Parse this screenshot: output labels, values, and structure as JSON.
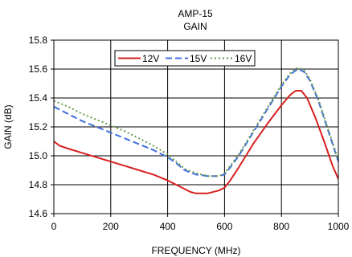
{
  "chart_data": {
    "type": "line",
    "title": "AMP-15",
    "subtitle": "GAIN",
    "xlabel": "FREQUENCY (MHz)",
    "ylabel": "GAIN (dB)",
    "xlim": [
      0,
      1000
    ],
    "ylim": [
      14.6,
      15.8
    ],
    "xticks": [
      0,
      200,
      400,
      600,
      800,
      1000
    ],
    "yticks": [
      14.6,
      14.8,
      15.0,
      15.2,
      15.4,
      15.6,
      15.8
    ],
    "xtick_labels": [
      "0",
      "200",
      "400",
      "600",
      "800",
      "1000"
    ],
    "ytick_labels": [
      "14.6",
      "14.8",
      "15.0",
      "15.2",
      "15.4",
      "15.6",
      "15.8"
    ],
    "grid": true,
    "legend_position": "top-center",
    "series": [
      {
        "name": "12V",
        "color": "#d62020",
        "style": "solid",
        "x": [
          0,
          20,
          50,
          100,
          150,
          200,
          250,
          300,
          350,
          400,
          430,
          460,
          480,
          500,
          540,
          580,
          600,
          620,
          650,
          700,
          750,
          800,
          830,
          850,
          870,
          890,
          920,
          950,
          980,
          1000
        ],
        "y": [
          15.1,
          15.07,
          15.05,
          15.02,
          14.99,
          14.96,
          14.93,
          14.9,
          14.87,
          14.83,
          14.8,
          14.77,
          14.75,
          14.74,
          14.74,
          14.76,
          14.78,
          14.83,
          14.92,
          15.08,
          15.22,
          15.35,
          15.42,
          15.45,
          15.45,
          15.4,
          15.26,
          15.1,
          14.93,
          14.84
        ]
      },
      {
        "name": "15V",
        "color": "#3f6fe0",
        "style": "dashed",
        "x": [
          0,
          50,
          100,
          150,
          200,
          250,
          300,
          350,
          400,
          430,
          460,
          500,
          540,
          580,
          600,
          620,
          650,
          700,
          750,
          800,
          830,
          850,
          860,
          880,
          900,
          930,
          960,
          990,
          1000
        ],
        "y": [
          15.34,
          15.29,
          15.24,
          15.2,
          15.16,
          15.12,
          15.08,
          15.04,
          14.99,
          14.95,
          14.9,
          14.87,
          14.86,
          14.86,
          14.87,
          14.92,
          15.0,
          15.16,
          15.32,
          15.48,
          15.56,
          15.59,
          15.6,
          15.58,
          15.52,
          15.38,
          15.2,
          15.02,
          14.96
        ]
      },
      {
        "name": "16V",
        "color": "#6a9a4a",
        "style": "dotted",
        "x": [
          0,
          50,
          100,
          150,
          200,
          250,
          300,
          350,
          400,
          430,
          460,
          500,
          540,
          580,
          600,
          620,
          650,
          700,
          750,
          800,
          830,
          850,
          860,
          880,
          900,
          930,
          960,
          990,
          1000
        ],
        "y": [
          15.38,
          15.34,
          15.29,
          15.25,
          15.21,
          15.17,
          15.12,
          15.07,
          15.01,
          14.96,
          14.91,
          14.88,
          14.86,
          14.86,
          14.88,
          14.93,
          15.01,
          15.17,
          15.33,
          15.49,
          15.57,
          15.6,
          15.61,
          15.59,
          15.53,
          15.39,
          15.21,
          15.03,
          14.97
        ]
      }
    ]
  }
}
